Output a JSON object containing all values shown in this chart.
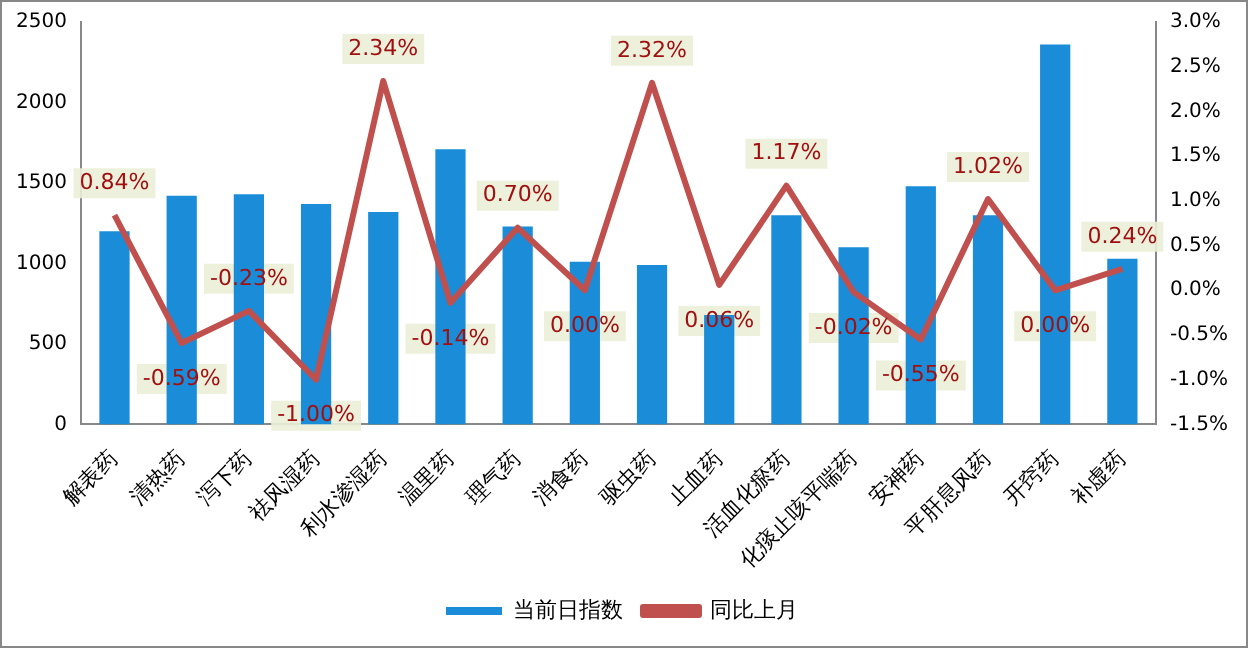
{
  "chart_data": {
    "type": "bar",
    "categories": [
      "解表药",
      "清热药",
      "泻下药",
      "祛风湿药",
      "利水渗湿药",
      "温里药",
      "理气药",
      "消食药",
      "驱虫药",
      "止血药",
      "活血化瘀药",
      "化痰止咳平喘药",
      "安神药",
      "平肝息风药",
      "开窍药",
      "补虚药"
    ],
    "series": [
      {
        "name": "当前日指数",
        "color": "#1a8cd8",
        "values": [
          1200,
          1420,
          1430,
          1370,
          1320,
          1710,
          1230,
          1010,
          990,
          680,
          1300,
          1100,
          1480,
          1300,
          2360,
          1030
        ]
      },
      {
        "name": "同比上月",
        "type": "line",
        "axis": "y2",
        "color": "#c0504d",
        "values": [
          0.84,
          -0.59,
          -0.23,
          -1.0,
          2.34,
          -0.14,
          0.7,
          0.0,
          2.32,
          0.06,
          1.17,
          -0.02,
          -0.55,
          1.02,
          0.0,
          0.24
        ],
        "value_labels": [
          "0.84%",
          "-0.59%",
          "-0.23%",
          "-1.00%",
          "2.34%",
          "-0.14%",
          "0.70%",
          "0.00%",
          "2.32%",
          "0.06%",
          "1.17%",
          "-0.02%",
          "-0.55%",
          "1.02%",
          "0.00%",
          "0.24%"
        ]
      }
    ],
    "ylim": [
      0,
      2500
    ],
    "yticks": [
      0,
      500,
      1000,
      1500,
      2000,
      2500
    ],
    "y2lim": [
      -1.5,
      3.0
    ],
    "y2ticks": [
      {
        "value": -1.5,
        "label": "-1.5%"
      },
      {
        "value": -1.0,
        "label": "-1.0%"
      },
      {
        "value": -0.5,
        "label": "-0.5%"
      },
      {
        "value": 0,
        "label": "0.0%"
      },
      {
        "value": 0.5,
        "label": "0.5%"
      },
      {
        "value": 1.0,
        "label": "1.0%"
      },
      {
        "value": 1.5,
        "label": "1.5%"
      },
      {
        "value": 2.0,
        "label": "2.0%"
      },
      {
        "value": 2.5,
        "label": "2.5%"
      },
      {
        "value": 3.0,
        "label": "3.0%"
      }
    ],
    "grid": false,
    "legend": "bottom"
  }
}
